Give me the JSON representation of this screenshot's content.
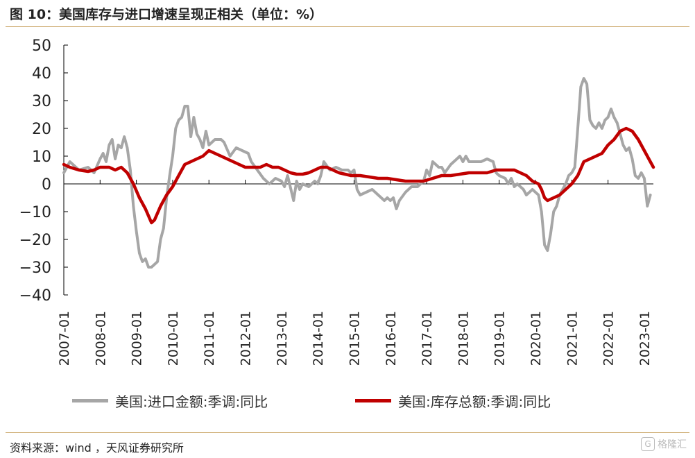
{
  "title": "图 10：美国库存与进口增速呈现正相关（单位：%）",
  "source": "资料来源：wind ，天风证券研究所",
  "watermark": "格隆汇",
  "colors": {
    "import": "#a6a6a6",
    "inventory": "#c00000",
    "rule": "#c9a463"
  },
  "chart_data": {
    "type": "line",
    "ylim": [
      -40,
      50
    ],
    "yticks": [
      "50",
      "40",
      "30",
      "20",
      "10",
      "0",
      "−10",
      "−20",
      "−30",
      "−40"
    ],
    "x_range": [
      "2007-01",
      "2023-04"
    ],
    "xticks": [
      "2007-01",
      "2008-01",
      "2009-01",
      "2010-01",
      "2011-01",
      "2012-01",
      "2013-01",
      "2014-01",
      "2015-01",
      "2016-01",
      "2017-01",
      "2018-01",
      "2019-01",
      "2020-01",
      "2021-01",
      "2022-01",
      "2023-01"
    ],
    "series": [
      {
        "name": "美国:进口金额:季调:同比",
        "color": "#a6a6a6",
        "points": [
          [
            "2007-01",
            4
          ],
          [
            "2007-03",
            8
          ],
          [
            "2007-06",
            5
          ],
          [
            "2007-09",
            6
          ],
          [
            "2007-11",
            4
          ],
          [
            "2008-01",
            9
          ],
          [
            "2008-02",
            11
          ],
          [
            "2008-03",
            8
          ],
          [
            "2008-04",
            14
          ],
          [
            "2008-05",
            16
          ],
          [
            "2008-06",
            9
          ],
          [
            "2008-07",
            14
          ],
          [
            "2008-08",
            13
          ],
          [
            "2008-09",
            17
          ],
          [
            "2008-10",
            13
          ],
          [
            "2008-11",
            5
          ],
          [
            "2008-12",
            -8
          ],
          [
            "2009-01",
            -17
          ],
          [
            "2009-02",
            -25
          ],
          [
            "2009-03",
            -28
          ],
          [
            "2009-04",
            -27
          ],
          [
            "2009-05",
            -30
          ],
          [
            "2009-06",
            -30
          ],
          [
            "2009-07",
            -29
          ],
          [
            "2009-08",
            -28
          ],
          [
            "2009-09",
            -20
          ],
          [
            "2009-10",
            -16
          ],
          [
            "2009-11",
            -5
          ],
          [
            "2009-12",
            3
          ],
          [
            "2010-01",
            10
          ],
          [
            "2010-02",
            20
          ],
          [
            "2010-03",
            23
          ],
          [
            "2010-04",
            24
          ],
          [
            "2010-05",
            28
          ],
          [
            "2010-06",
            28
          ],
          [
            "2010-07",
            17
          ],
          [
            "2010-08",
            24
          ],
          [
            "2010-09",
            18
          ],
          [
            "2010-10",
            16
          ],
          [
            "2010-11",
            13
          ],
          [
            "2010-12",
            19
          ],
          [
            "2011-01",
            14
          ],
          [
            "2011-03",
            16
          ],
          [
            "2011-05",
            16
          ],
          [
            "2011-06",
            15
          ],
          [
            "2011-08",
            10
          ],
          [
            "2011-10",
            13
          ],
          [
            "2011-12",
            12
          ],
          [
            "2012-02",
            11
          ],
          [
            "2012-03",
            8
          ],
          [
            "2012-05",
            5
          ],
          [
            "2012-07",
            2
          ],
          [
            "2012-09",
            0
          ],
          [
            "2012-11",
            2
          ],
          [
            "2013-01",
            1
          ],
          [
            "2013-02",
            -1
          ],
          [
            "2013-03",
            3
          ],
          [
            "2013-05",
            -6
          ],
          [
            "2013-06",
            1
          ],
          [
            "2013-07",
            -2
          ],
          [
            "2013-08",
            0
          ],
          [
            "2013-10",
            -1
          ],
          [
            "2013-12",
            1
          ],
          [
            "2014-01",
            0
          ],
          [
            "2014-02",
            3
          ],
          [
            "2014-03",
            8
          ],
          [
            "2014-05",
            5
          ],
          [
            "2014-07",
            6
          ],
          [
            "2014-09",
            5
          ],
          [
            "2014-11",
            5
          ],
          [
            "2014-12",
            4
          ],
          [
            "2015-01",
            5
          ],
          [
            "2015-02",
            -2
          ],
          [
            "2015-03",
            -4
          ],
          [
            "2015-05",
            -3
          ],
          [
            "2015-07",
            -2
          ],
          [
            "2015-09",
            -4
          ],
          [
            "2015-11",
            -6
          ],
          [
            "2015-12",
            -5
          ],
          [
            "2016-01",
            -6
          ],
          [
            "2016-02",
            -5
          ],
          [
            "2016-03",
            -9
          ],
          [
            "2016-04",
            -6
          ],
          [
            "2016-06",
            -3
          ],
          [
            "2016-08",
            -1
          ],
          [
            "2016-10",
            -1
          ],
          [
            "2016-12",
            1
          ],
          [
            "2017-01",
            5
          ],
          [
            "2017-02",
            3
          ],
          [
            "2017-03",
            8
          ],
          [
            "2017-04",
            7
          ],
          [
            "2017-05",
            6
          ],
          [
            "2017-06",
            6
          ],
          [
            "2017-07",
            4
          ],
          [
            "2017-09",
            7
          ],
          [
            "2017-11",
            9
          ],
          [
            "2017-12",
            10
          ],
          [
            "2018-01",
            8
          ],
          [
            "2018-02",
            10
          ],
          [
            "2018-03",
            8
          ],
          [
            "2018-05",
            8
          ],
          [
            "2018-07",
            8
          ],
          [
            "2018-09",
            9
          ],
          [
            "2018-11",
            8
          ],
          [
            "2018-12",
            4
          ],
          [
            "2019-01",
            3
          ],
          [
            "2019-03",
            2
          ],
          [
            "2019-04",
            0
          ],
          [
            "2019-05",
            2
          ],
          [
            "2019-06",
            -1
          ],
          [
            "2019-07",
            0
          ],
          [
            "2019-09",
            -2
          ],
          [
            "2019-10",
            -4
          ],
          [
            "2019-11",
            -3
          ],
          [
            "2019-12",
            -2
          ],
          [
            "2020-01",
            -3
          ],
          [
            "2020-02",
            -4
          ],
          [
            "2020-03",
            -10
          ],
          [
            "2020-04",
            -22
          ],
          [
            "2020-05",
            -24
          ],
          [
            "2020-06",
            -18
          ],
          [
            "2020-07",
            -10
          ],
          [
            "2020-08",
            -8
          ],
          [
            "2020-09",
            -4
          ],
          [
            "2020-10",
            -2
          ],
          [
            "2020-11",
            0
          ],
          [
            "2020-12",
            3
          ],
          [
            "2021-01",
            4
          ],
          [
            "2021-02",
            6
          ],
          [
            "2021-03",
            20
          ],
          [
            "2021-04",
            35
          ],
          [
            "2021-05",
            38
          ],
          [
            "2021-06",
            36
          ],
          [
            "2021-07",
            23
          ],
          [
            "2021-08",
            21
          ],
          [
            "2021-09",
            20
          ],
          [
            "2021-10",
            22
          ],
          [
            "2021-11",
            20
          ],
          [
            "2021-12",
            23
          ],
          [
            "2022-01",
            24
          ],
          [
            "2022-02",
            27
          ],
          [
            "2022-03",
            24
          ],
          [
            "2022-04",
            22
          ],
          [
            "2022-05",
            18
          ],
          [
            "2022-06",
            14
          ],
          [
            "2022-07",
            12
          ],
          [
            "2022-08",
            13
          ],
          [
            "2022-09",
            9
          ],
          [
            "2022-10",
            3
          ],
          [
            "2022-11",
            2
          ],
          [
            "2022-12",
            4
          ],
          [
            "2023-01",
            2
          ],
          [
            "2023-02",
            -8
          ],
          [
            "2023-03",
            -4
          ]
        ]
      },
      {
        "name": "美国:库存总额:季调:同比",
        "color": "#c00000",
        "points": [
          [
            "2007-01",
            7
          ],
          [
            "2007-03",
            6
          ],
          [
            "2007-06",
            5
          ],
          [
            "2007-09",
            4.5
          ],
          [
            "2007-11",
            5
          ],
          [
            "2008-01",
            6
          ],
          [
            "2008-04",
            6
          ],
          [
            "2008-06",
            5
          ],
          [
            "2008-08",
            6
          ],
          [
            "2008-10",
            4
          ],
          [
            "2008-12",
            0
          ],
          [
            "2009-02",
            -5
          ],
          [
            "2009-04",
            -9
          ],
          [
            "2009-06",
            -14
          ],
          [
            "2009-07",
            -13
          ],
          [
            "2009-09",
            -8
          ],
          [
            "2009-11",
            -4
          ],
          [
            "2010-01",
            -1
          ],
          [
            "2010-03",
            3
          ],
          [
            "2010-05",
            7
          ],
          [
            "2010-07",
            8
          ],
          [
            "2010-09",
            9
          ],
          [
            "2010-11",
            10
          ],
          [
            "2011-01",
            12
          ],
          [
            "2011-03",
            11
          ],
          [
            "2011-05",
            10
          ],
          [
            "2011-07",
            9
          ],
          [
            "2011-09",
            8
          ],
          [
            "2011-11",
            7
          ],
          [
            "2012-01",
            6
          ],
          [
            "2012-04",
            6
          ],
          [
            "2012-06",
            6
          ],
          [
            "2012-08",
            7
          ],
          [
            "2012-10",
            6
          ],
          [
            "2012-12",
            6
          ],
          [
            "2013-02",
            5
          ],
          [
            "2013-04",
            4
          ],
          [
            "2013-06",
            3.5
          ],
          [
            "2013-08",
            3.5
          ],
          [
            "2013-10",
            4
          ],
          [
            "2013-12",
            5
          ],
          [
            "2014-02",
            6
          ],
          [
            "2014-04",
            6
          ],
          [
            "2014-06",
            5
          ],
          [
            "2014-08",
            4
          ],
          [
            "2014-10",
            3.5
          ],
          [
            "2014-12",
            3
          ],
          [
            "2015-03",
            3
          ],
          [
            "2015-06",
            2.5
          ],
          [
            "2015-09",
            2
          ],
          [
            "2015-12",
            2
          ],
          [
            "2016-03",
            1.5
          ],
          [
            "2016-06",
            1
          ],
          [
            "2016-09",
            1
          ],
          [
            "2016-12",
            1
          ],
          [
            "2017-03",
            2
          ],
          [
            "2017-06",
            3
          ],
          [
            "2017-09",
            3
          ],
          [
            "2017-12",
            3.5
          ],
          [
            "2018-03",
            4
          ],
          [
            "2018-06",
            4
          ],
          [
            "2018-09",
            4
          ],
          [
            "2018-12",
            5
          ],
          [
            "2019-03",
            5
          ],
          [
            "2019-06",
            5
          ],
          [
            "2019-08",
            4
          ],
          [
            "2019-10",
            3
          ],
          [
            "2019-12",
            1
          ],
          [
            "2020-02",
            0
          ],
          [
            "2020-03",
            -2
          ],
          [
            "2020-04",
            -5
          ],
          [
            "2020-05",
            -6
          ],
          [
            "2020-07",
            -5
          ],
          [
            "2020-09",
            -4
          ],
          [
            "2020-11",
            -2
          ],
          [
            "2021-01",
            0
          ],
          [
            "2021-03",
            3
          ],
          [
            "2021-05",
            8
          ],
          [
            "2021-07",
            9
          ],
          [
            "2021-09",
            10
          ],
          [
            "2021-11",
            11
          ],
          [
            "2022-01",
            14
          ],
          [
            "2022-03",
            16
          ],
          [
            "2022-05",
            19
          ],
          [
            "2022-07",
            20
          ],
          [
            "2022-09",
            19
          ],
          [
            "2022-11",
            16
          ],
          [
            "2023-01",
            12
          ],
          [
            "2023-03",
            8
          ],
          [
            "2023-04",
            6
          ]
        ]
      }
    ]
  }
}
